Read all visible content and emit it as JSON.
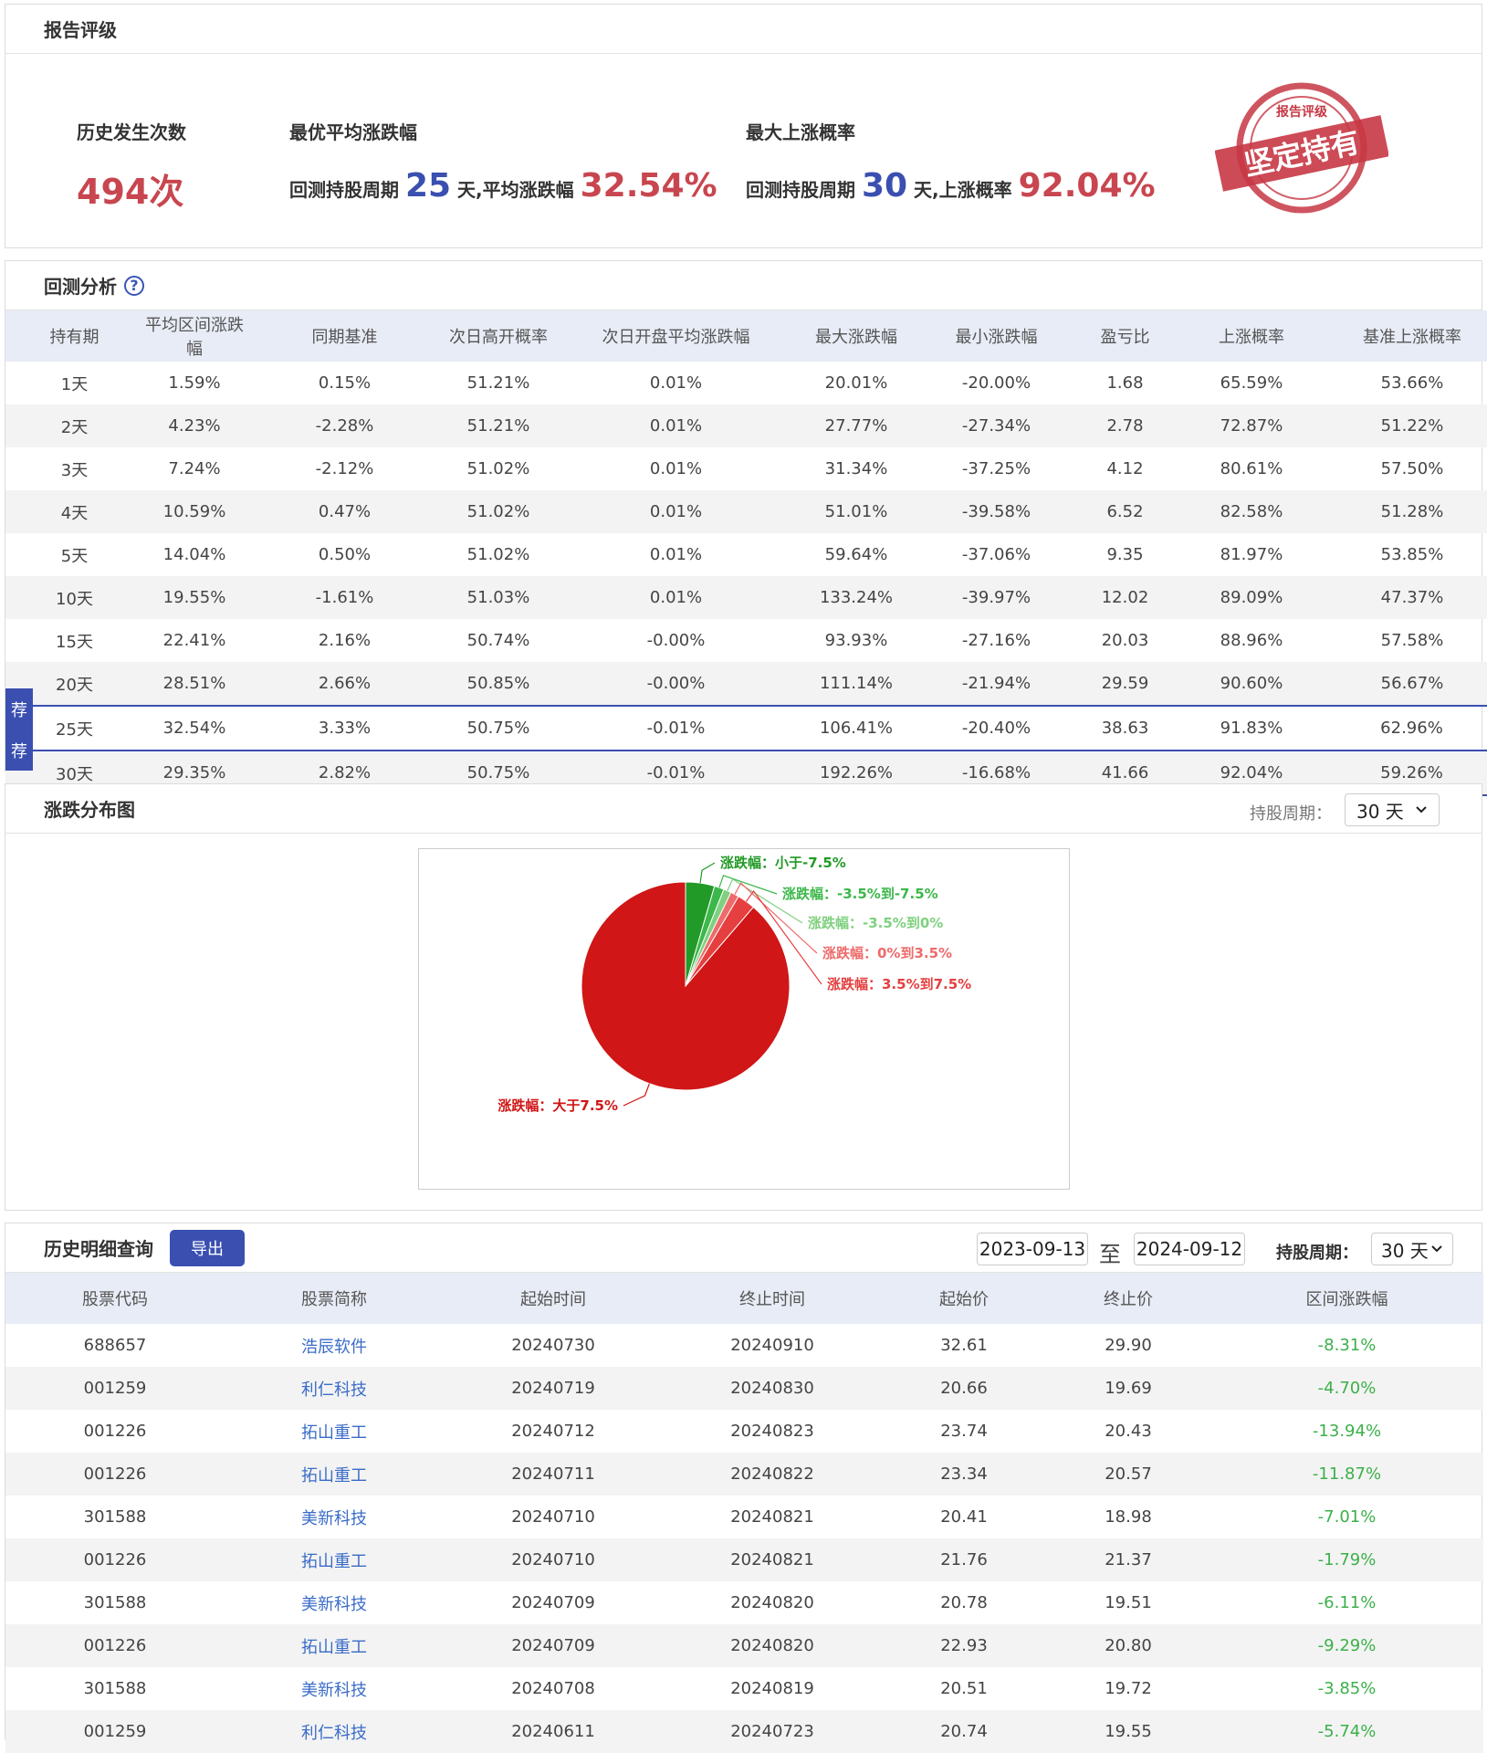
{
  "rating": {
    "title": "报告评级",
    "history_count_label": "历史发生次数",
    "history_count": "494次",
    "best_avg_label": "最优平均涨跌幅",
    "best_prefix": "回测持股周期",
    "best_days": "25",
    "best_mid": "天,平均涨跌幅",
    "best_value": "32.54%",
    "max_prob_label": "最大上涨概率",
    "max_prefix": "回测持股周期",
    "max_days": "30",
    "max_mid": "天,上涨概率",
    "max_value": "92.04%",
    "stamp_top": "报告评级",
    "stamp_main": "坚定持有"
  },
  "backtest": {
    "title": "回测分析",
    "help_icon": "question-circle-icon",
    "badge": "荐",
    "columns": [
      "持有期",
      "平均区间涨跌幅",
      "同期基准",
      "次日高开概率",
      "次日开盘平均涨跌幅",
      "最大涨跌幅",
      "最小涨跌幅",
      "盈亏比",
      "上涨概率",
      "基准上涨概率"
    ],
    "rows": [
      [
        "1天",
        "1.59%",
        "0.15%",
        "51.21%",
        "0.01%",
        "20.01%",
        "-20.00%",
        "1.68",
        "65.59%",
        "53.66%"
      ],
      [
        "2天",
        "4.23%",
        "-2.28%",
        "51.21%",
        "0.01%",
        "27.77%",
        "-27.34%",
        "2.78",
        "72.87%",
        "51.22%"
      ],
      [
        "3天",
        "7.24%",
        "-2.12%",
        "51.02%",
        "0.01%",
        "31.34%",
        "-37.25%",
        "4.12",
        "80.61%",
        "57.50%"
      ],
      [
        "4天",
        "10.59%",
        "0.47%",
        "51.02%",
        "0.01%",
        "51.01%",
        "-39.58%",
        "6.52",
        "82.58%",
        "51.28%"
      ],
      [
        "5天",
        "14.04%",
        "0.50%",
        "51.02%",
        "0.01%",
        "59.64%",
        "-37.06%",
        "9.35",
        "81.97%",
        "53.85%"
      ],
      [
        "10天",
        "19.55%",
        "-1.61%",
        "51.03%",
        "0.01%",
        "133.24%",
        "-39.97%",
        "12.02",
        "89.09%",
        "47.37%"
      ],
      [
        "15天",
        "22.41%",
        "2.16%",
        "50.74%",
        "-0.00%",
        "93.93%",
        "-27.16%",
        "20.03",
        "88.96%",
        "57.58%"
      ],
      [
        "20天",
        "28.51%",
        "2.66%",
        "50.85%",
        "-0.00%",
        "111.14%",
        "-21.94%",
        "29.59",
        "90.60%",
        "56.67%"
      ],
      [
        "25天",
        "32.54%",
        "3.33%",
        "50.75%",
        "-0.01%",
        "106.41%",
        "-20.40%",
        "38.63",
        "91.83%",
        "62.96%"
      ],
      [
        "30天",
        "29.35%",
        "2.82%",
        "50.75%",
        "-0.01%",
        "192.26%",
        "-16.68%",
        "41.66",
        "92.04%",
        "59.26%"
      ]
    ],
    "recommended_rows": [
      8,
      9
    ]
  },
  "distribution": {
    "title": "涨跌分布图",
    "period_label": "持股周期：",
    "period_value": "30 天",
    "chevron_icon": "chevron-down-icon"
  },
  "chart_data": {
    "type": "pie",
    "series": [
      {
        "name": "涨跌幅：小于-7.5%",
        "value": 4.5,
        "color": "#229a27"
      },
      {
        "name": "涨跌幅：-3.5%到-7.5%",
        "value": 1.5,
        "color": "#3cb84a"
      },
      {
        "name": "涨跌幅：-3.5%到0%",
        "value": 1.2,
        "color": "#7fd07f"
      },
      {
        "name": "涨跌幅：0%到3.5%",
        "value": 1.3,
        "color": "#ee6b6b"
      },
      {
        "name": "涨跌幅：3.5%到7.5%",
        "value": 2.8,
        "color": "#e53f3f"
      },
      {
        "name": "涨跌幅：大于7.5%",
        "value": 88.7,
        "color": "#d01616"
      }
    ]
  },
  "history": {
    "title": "历史明细查询",
    "export_label": "导出",
    "start_date": "2023-09-13",
    "to_label": "至",
    "end_date": "2024-09-12",
    "period_label": "持股周期：",
    "period_value": "30 天",
    "chevron_icon": "chevron-down-icon",
    "columns": [
      "股票代码",
      "股票简称",
      "起始时间",
      "终止时间",
      "起始价",
      "终止价",
      "区间涨跌幅"
    ],
    "rows": [
      [
        "688657",
        "浩辰软件",
        "20240730",
        "20240910",
        "32.61",
        "29.90",
        "-8.31%"
      ],
      [
        "001259",
        "利仁科技",
        "20240719",
        "20240830",
        "20.66",
        "19.69",
        "-4.70%"
      ],
      [
        "001226",
        "拓山重工",
        "20240712",
        "20240823",
        "23.74",
        "20.43",
        "-13.94%"
      ],
      [
        "001226",
        "拓山重工",
        "20240711",
        "20240822",
        "23.34",
        "20.57",
        "-11.87%"
      ],
      [
        "301588",
        "美新科技",
        "20240710",
        "20240821",
        "20.41",
        "18.98",
        "-7.01%"
      ],
      [
        "001226",
        "拓山重工",
        "20240710",
        "20240821",
        "21.76",
        "21.37",
        "-1.79%"
      ],
      [
        "301588",
        "美新科技",
        "20240709",
        "20240820",
        "20.78",
        "19.51",
        "-6.11%"
      ],
      [
        "001226",
        "拓山重工",
        "20240709",
        "20240820",
        "22.93",
        "20.80",
        "-9.29%"
      ],
      [
        "301588",
        "美新科技",
        "20240708",
        "20240819",
        "20.51",
        "19.72",
        "-3.85%"
      ],
      [
        "001259",
        "利仁科技",
        "20240611",
        "20240723",
        "20.74",
        "19.55",
        "-5.74%"
      ]
    ],
    "negative_color": "#3cb04a"
  }
}
